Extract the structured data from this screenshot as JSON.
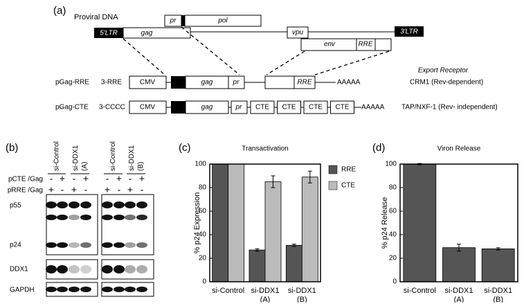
{
  "panel_labels": [
    "(a)",
    "(b)",
    "(c)",
    "(d)"
  ],
  "diagram": {
    "proviral_label": "Proviral DNA",
    "ltr5": "5'LTR",
    "gag": "gag",
    "pr": "pr",
    "pol": "pol",
    "vpu": "vpu",
    "ltr3": "3'LTR",
    "env": "env",
    "rre": "RRE",
    "export_header": "Export Receptor",
    "constructs": [
      {
        "name": "pGag-RRE",
        "element": "3-RRE",
        "cmv": "CMV",
        "gag": "gag",
        "pr": "pr",
        "rre": "RRE",
        "tail": "AAAAA",
        "receptor": "CRM1 (Rev-dependent)"
      },
      {
        "name": "pGag-CTE",
        "element": "3-CCCC",
        "cmv": "CMV",
        "gag": "gag",
        "pr": "pr",
        "cte": [
          "CTE",
          "CTE",
          "CTE",
          "CTE"
        ],
        "tail": "AAAAA",
        "receptor": "TAP/NXF-1 (Rev- independent)"
      }
    ]
  },
  "blot": {
    "lanes": [
      {
        "name": "si-Control"
      },
      {
        "name": "si-DDX1",
        "sub": "(A)"
      },
      {
        "name": "si-Control"
      },
      {
        "name": "si-DDX1",
        "sub": "(B)"
      }
    ],
    "rows": [
      {
        "label": "pCTE /Gag",
        "signs": [
          "-",
          "+",
          "-",
          "+",
          "-",
          "+",
          "-",
          "+"
        ]
      },
      {
        "label": "pRRE /Gag",
        "signs": [
          "+",
          "-",
          "+",
          "-",
          "+",
          "-",
          "+",
          "-"
        ]
      }
    ],
    "bands": [
      "p55",
      "p24",
      "DDX1",
      "GAPDH"
    ]
  },
  "chart_data": [
    {
      "type": "bar",
      "title": "Transactivation",
      "y_label": "% p24 Expression",
      "categories": [
        "si-Control",
        "si-DDX1\n(A)",
        "si-DDX1\n(B)"
      ],
      "series": [
        {
          "name": "RRE",
          "color": "#555555",
          "values": [
            100,
            27,
            31
          ],
          "errors": [
            0,
            1,
            1
          ]
        },
        {
          "name": "CTE",
          "color": "#bbbbbb",
          "values": [
            100,
            85,
            89
          ],
          "errors": [
            0,
            5,
            5
          ]
        }
      ],
      "ylim": [
        0,
        100
      ],
      "yticks": [
        0,
        20,
        40,
        60,
        80,
        100
      ],
      "legend": "right"
    },
    {
      "type": "bar",
      "title": "Viron Release",
      "y_label": "% p24 Release",
      "categories": [
        "si-Control",
        "si-DDX1\n(A)",
        "si-DDX1\n(B)"
      ],
      "values": [
        100,
        29,
        28
      ],
      "errors": [
        0.5,
        3,
        1
      ],
      "color": "#555555",
      "ylim": [
        0,
        100
      ],
      "yticks": [
        0,
        20,
        40,
        60,
        80,
        100
      ]
    }
  ]
}
